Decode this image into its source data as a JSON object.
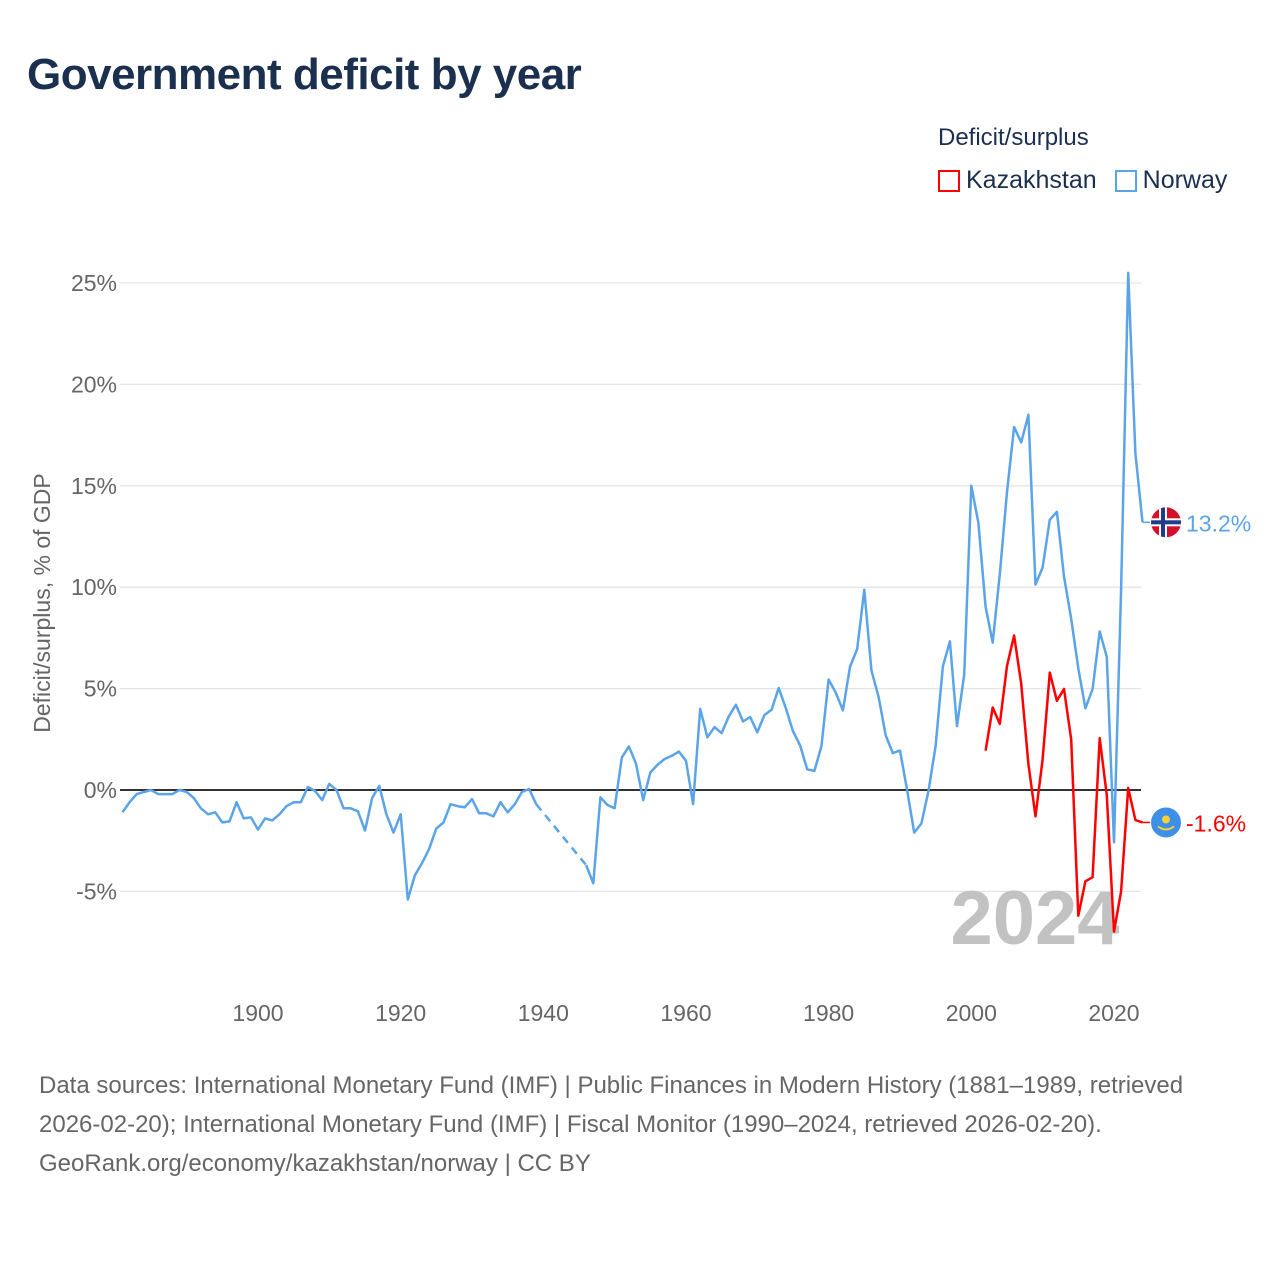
{
  "title": "Government deficit by year",
  "legend": {
    "title": "Deficit/surplus",
    "items": [
      {
        "name": "Kazakhstan",
        "color": "#ff0000"
      },
      {
        "name": "Norway",
        "color": "#5ba4ea"
      }
    ]
  },
  "footer": {
    "sources": "Data sources: International Monetary Fund (IMF) | Public Finances in Modern History (1881–1989, retrieved 2026-02-20); International Monetary Fund (IMF) | Fiscal Monitor (1990–2024, retrieved 2026-02-20).",
    "credit": "GeoRank.org/economy/kazakhstan/norway | CC BY"
  },
  "chart_data": {
    "type": "line",
    "title": "Government deficit by year",
    "xlabel": "",
    "ylabel": "Deficit/surplus, % of GDP",
    "xlim": [
      1881,
      2024
    ],
    "ylim": [
      -8.5,
      25.5
    ],
    "yticks": [
      -5,
      0,
      5,
      10,
      15,
      20,
      25
    ],
    "ytick_labels": [
      "-5%",
      "0%",
      "5%",
      "10%",
      "15%",
      "20%",
      "25%"
    ],
    "xticks": [
      1900,
      1920,
      1940,
      1960,
      1980,
      2000,
      2020
    ],
    "xtick_labels": [
      "1900",
      "1920",
      "1940",
      "1960",
      "1980",
      "2000",
      "2020"
    ],
    "watermark_year": "2024",
    "grid": true,
    "legend_position": "top-right",
    "series": [
      {
        "name": "Norway",
        "color": "#5ba4ea",
        "start_year": 1881,
        "end_label": "13.2%",
        "values": [
          -1.1,
          -0.6,
          -0.2,
          -0.1,
          0.0,
          -0.2,
          -0.2,
          -0.2,
          0.0,
          -0.1,
          -0.4,
          -0.9,
          -1.2,
          -1.1,
          -1.6,
          -1.55,
          -0.6,
          -1.4,
          -1.35,
          -1.95,
          -1.4,
          -1.5,
          -1.2,
          -0.8,
          -0.6,
          -0.6,
          0.15,
          -0.05,
          -0.5,
          0.3,
          0.0,
          -0.9,
          -0.9,
          -1.05,
          -2.0,
          -0.4,
          0.2,
          -1.2,
          -2.1,
          -1.2,
          -5.4,
          -4.2,
          -3.6,
          -2.9,
          -1.9,
          -1.6,
          -0.7,
          -0.8,
          -0.85,
          -0.45,
          -1.15,
          -1.15,
          -1.3,
          -0.6,
          -1.1,
          -0.7,
          -0.1,
          0.05,
          -0.7,
          null,
          null,
          null,
          null,
          null,
          null,
          -3.7,
          -4.6,
          -0.36,
          -0.74,
          -0.9,
          1.6,
          2.15,
          1.3,
          -0.5,
          0.86,
          1.24,
          1.53,
          1.68,
          1.9,
          1.44,
          -0.7,
          4.0,
          2.6,
          3.1,
          2.8,
          3.63,
          4.2,
          3.38,
          3.6,
          2.84,
          3.7,
          3.96,
          5.03,
          4.04,
          2.9,
          2.2,
          1.02,
          0.94,
          2.18,
          5.45,
          4.8,
          3.93,
          6.07,
          6.96,
          9.87,
          5.9,
          4.59,
          2.69,
          1.82,
          1.95,
          0.0,
          -2.1,
          -1.65,
          -0.04,
          2.16,
          6.08,
          7.33,
          3.15,
          5.68,
          15.0,
          13.17,
          9.03,
          7.27,
          10.64,
          14.7,
          17.9,
          17.14,
          18.5,
          10.13,
          10.97,
          13.33,
          13.72,
          10.53,
          8.44,
          6.0,
          4.03,
          4.98,
          7.82,
          6.56,
          -2.58,
          9.87,
          25.5,
          16.6,
          13.2
        ]
      },
      {
        "name": "Kazakhstan",
        "color": "#ff0000",
        "start_year": 2002,
        "end_label": "-1.6%",
        "values": [
          1.94,
          4.07,
          3.26,
          6.12,
          7.62,
          5.24,
          1.28,
          -1.3,
          1.5,
          5.79,
          4.4,
          4.98,
          2.49,
          -6.2,
          -4.5,
          -4.3,
          2.56,
          -0.26,
          -6.98,
          -5.0,
          0.1,
          -1.48,
          -1.6
        ]
      }
    ]
  }
}
